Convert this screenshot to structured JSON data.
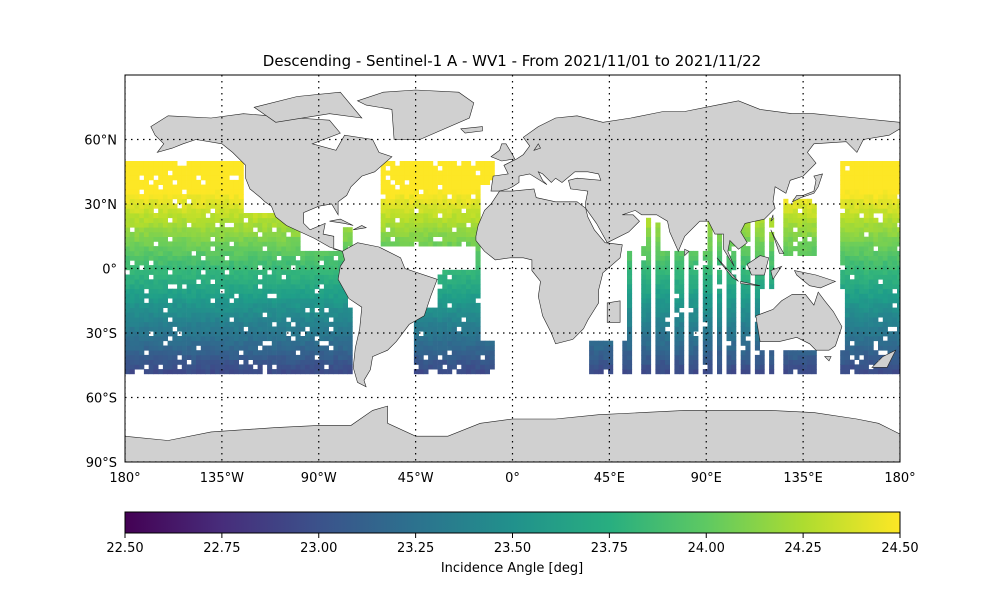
{
  "title": "Descending - Sentinel-1 A - WV1 - From 2021/11/01 to 2021/11/22",
  "map": {
    "projection": "equirectangular",
    "lon_range": [
      -180,
      180
    ],
    "lat_range": [
      -90,
      90
    ],
    "land_color": "#d0d0d0",
    "coast_color": "#222222",
    "grid": "dotted",
    "lon_ticks": [
      {
        "value": -180,
        "label": "180°"
      },
      {
        "value": -135,
        "label": "135°W"
      },
      {
        "value": -90,
        "label": "90°W"
      },
      {
        "value": -45,
        "label": "45°W"
      },
      {
        "value": 0,
        "label": "0°"
      },
      {
        "value": 45,
        "label": "45°E"
      },
      {
        "value": 90,
        "label": "90°E"
      },
      {
        "value": 135,
        "label": "135°E"
      },
      {
        "value": 180,
        "label": "180°"
      }
    ],
    "lat_ticks": [
      {
        "value": 60,
        "label": "60°N"
      },
      {
        "value": 30,
        "label": "30°N"
      },
      {
        "value": 0,
        "label": "0°"
      },
      {
        "value": -30,
        "label": "30°S"
      },
      {
        "value": -60,
        "label": "60°S"
      },
      {
        "value": -90,
        "label": "90°S"
      }
    ]
  },
  "colorbar": {
    "colormap": "viridis",
    "label": "Incidence Angle [deg]",
    "range": [
      22.5,
      24.5
    ],
    "ticks": [
      "22.50",
      "22.75",
      "23.00",
      "23.25",
      "23.50",
      "23.75",
      "24.00",
      "24.25",
      "24.50"
    ]
  }
}
